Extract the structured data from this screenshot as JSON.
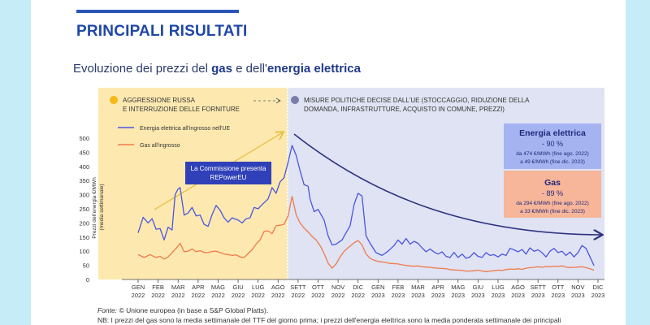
{
  "section_title": "PRINCIPALI RISULTATI",
  "chart_title": {
    "pre": "Evoluzione dei prezzi del ",
    "bold1": "gas",
    "mid": " e dell'",
    "bold2": "energia elettrica"
  },
  "phases": {
    "left_line1": "AGGRESSIONE RUSSA",
    "left_line2": "E INTERRUZIONE DELLE FORNITURE",
    "right_line1": "MISURE POLITICHE DECISE DALL'UE (STOCCAGGIO, RIDUZIONE DELLA",
    "right_line2": "DOMANDA, INFRASTRUTTURE, ACQUISTO IN COMUNE, PREZZI)",
    "left_color": "#fde9b0",
    "right_color": "#dfe3f3",
    "left_dot_color": "#f5b818",
    "right_dot_color": "#7b7fa8"
  },
  "annotation": {
    "line1": "La Commissione presenta",
    "line2": "REPowerEU"
  },
  "box_elec": {
    "title": "Energia elettrica",
    "pct": "- 90 %",
    "line1": "da 474 €/MWh (fine ago. 2022)",
    "line2": "a 49 €/MWh (fine dic. 2023)",
    "color": "#a6b3f1"
  },
  "box_gas": {
    "title": "Gas",
    "pct": "- 89 %",
    "line1": "da 294 €/MWh (fine ago. 2022)",
    "line2": "a 33 €/MWh (fine dic. 2023)",
    "color": "#f7b59a"
  },
  "footer": {
    "source_label": "Fonte:",
    "source_text": " © Unione europea (in base a S&P Global Platts).",
    "note": "NB: I prezzi del gas sono la media settimanale del TTF del giorno prima; i prezzi dell'energia elettrica sono la media ponderata settimanale dei principali"
  },
  "chart_data": {
    "type": "line",
    "title": "Evoluzione dei prezzi del gas e dell'energia elettrica",
    "ylabel": "Prezzi dell'energia €/MWh (media settimanale)",
    "ylim": [
      0,
      500
    ],
    "yticks": [
      0,
      50,
      100,
      150,
      200,
      250,
      300,
      350,
      400,
      450,
      500
    ],
    "xlim": [
      0,
      24
    ],
    "x_ticks": [
      {
        "m": "GEN",
        "y": "2022"
      },
      {
        "m": "FEB",
        "y": "2022"
      },
      {
        "m": "MAR",
        "y": "2022"
      },
      {
        "m": "APR",
        "y": "2022"
      },
      {
        "m": "MAG",
        "y": "2022"
      },
      {
        "m": "GIU",
        "y": "2022"
      },
      {
        "m": "LUG",
        "y": "2022"
      },
      {
        "m": "AGO",
        "y": "2022"
      },
      {
        "m": "SETT",
        "y": "2022"
      },
      {
        "m": "OTT",
        "y": "2022"
      },
      {
        "m": "NOV",
        "y": "2022"
      },
      {
        "m": "DIC",
        "y": "2022"
      },
      {
        "m": "GEN",
        "y": "2023"
      },
      {
        "m": "FEB",
        "y": "2023"
      },
      {
        "m": "MAR",
        "y": "2023"
      },
      {
        "m": "APR",
        "y": "2023"
      },
      {
        "m": "MAG",
        "y": "2023"
      },
      {
        "m": "GIU",
        "y": "2023"
      },
      {
        "m": "LUG",
        "y": "2023"
      },
      {
        "m": "AGO",
        "y": "2023"
      },
      {
        "m": "SETT",
        "y": "2023"
      },
      {
        "m": "OTT",
        "y": "2023"
      },
      {
        "m": "NOV",
        "y": "2023"
      },
      {
        "m": "DIC",
        "y": "2023"
      }
    ],
    "legend": "top-left",
    "series": [
      {
        "name": "Energia elettrica all'ingrosso nell'UE",
        "color": "#4a55e0",
        "points": [
          [
            0,
            165
          ],
          [
            0.25,
            220
          ],
          [
            0.5,
            200
          ],
          [
            0.7,
            215
          ],
          [
            0.9,
            178
          ],
          [
            1.1,
            180
          ],
          [
            1.3,
            140
          ],
          [
            1.5,
            185
          ],
          [
            1.7,
            175
          ],
          [
            1.85,
            300
          ],
          [
            2.0,
            320
          ],
          [
            2.1,
            325
          ],
          [
            2.3,
            228
          ],
          [
            2.5,
            235
          ],
          [
            2.7,
            255
          ],
          [
            2.9,
            225
          ],
          [
            3.1,
            228
          ],
          [
            3.3,
            195
          ],
          [
            3.5,
            188
          ],
          [
            3.7,
            230
          ],
          [
            3.9,
            262
          ],
          [
            4.1,
            245
          ],
          [
            4.3,
            218
          ],
          [
            4.5,
            203
          ],
          [
            4.7,
            218
          ],
          [
            5.0,
            210
          ],
          [
            5.2,
            200
          ],
          [
            5.4,
            215
          ],
          [
            5.6,
            218
          ],
          [
            5.8,
            255
          ],
          [
            6.0,
            250
          ],
          [
            6.2,
            265
          ],
          [
            6.5,
            285
          ],
          [
            6.7,
            325
          ],
          [
            6.9,
            305
          ],
          [
            7.1,
            345
          ],
          [
            7.3,
            360
          ],
          [
            7.5,
            415
          ],
          [
            7.7,
            474
          ],
          [
            7.9,
            440
          ],
          [
            8.1,
            385
          ],
          [
            8.3,
            335
          ],
          [
            8.5,
            330
          ],
          [
            8.6,
            285
          ],
          [
            8.8,
            240
          ],
          [
            9.0,
            248
          ],
          [
            9.3,
            210
          ],
          [
            9.5,
            155
          ],
          [
            9.7,
            122
          ],
          [
            9.9,
            125
          ],
          [
            10.2,
            140
          ],
          [
            10.4,
            165
          ],
          [
            10.6,
            190
          ],
          [
            10.8,
            265
          ],
          [
            11.0,
            305
          ],
          [
            11.2,
            295
          ],
          [
            11.4,
            155
          ],
          [
            11.6,
            128
          ],
          [
            11.9,
            95
          ],
          [
            12.2,
            85
          ],
          [
            12.5,
            100
          ],
          [
            12.8,
            120
          ],
          [
            13.0,
            140
          ],
          [
            13.2,
            125
          ],
          [
            13.4,
            145
          ],
          [
            13.6,
            125
          ],
          [
            13.8,
            135
          ],
          [
            14.0,
            128
          ],
          [
            14.2,
            112
          ],
          [
            14.4,
            98
          ],
          [
            14.6,
            108
          ],
          [
            14.8,
            97
          ],
          [
            15.0,
            90
          ],
          [
            15.2,
            98
          ],
          [
            15.4,
            82
          ],
          [
            15.6,
            78
          ],
          [
            15.8,
            96
          ],
          [
            16.0,
            78
          ],
          [
            16.2,
            90
          ],
          [
            16.4,
            75
          ],
          [
            16.6,
            80
          ],
          [
            16.8,
            95
          ],
          [
            17.0,
            82
          ],
          [
            17.2,
            78
          ],
          [
            17.4,
            95
          ],
          [
            17.6,
            85
          ],
          [
            17.8,
            88
          ],
          [
            18.0,
            80
          ],
          [
            18.2,
            90
          ],
          [
            18.4,
            85
          ],
          [
            18.6,
            110
          ],
          [
            18.8,
            105
          ],
          [
            19.0,
            98
          ],
          [
            19.2,
            106
          ],
          [
            19.4,
            90
          ],
          [
            19.6,
            112
          ],
          [
            19.8,
            100
          ],
          [
            20.0,
            105
          ],
          [
            20.2,
            95
          ],
          [
            20.4,
            80
          ],
          [
            20.6,
            100
          ],
          [
            20.8,
            110
          ],
          [
            21.0,
            95
          ],
          [
            21.2,
            100
          ],
          [
            21.4,
            85
          ],
          [
            21.6,
            97
          ],
          [
            21.8,
            80
          ],
          [
            22.0,
            95
          ],
          [
            22.2,
            120
          ],
          [
            22.4,
            110
          ],
          [
            22.6,
            80
          ],
          [
            22.8,
            49
          ]
        ]
      },
      {
        "name": "Gas all'ingrosso",
        "color": "#f07a4a",
        "points": [
          [
            0,
            88
          ],
          [
            0.3,
            78
          ],
          [
            0.6,
            88
          ],
          [
            0.9,
            78
          ],
          [
            1.1,
            82
          ],
          [
            1.3,
            72
          ],
          [
            1.5,
            80
          ],
          [
            1.7,
            95
          ],
          [
            1.9,
            110
          ],
          [
            2.1,
            128
          ],
          [
            2.3,
            98
          ],
          [
            2.5,
            100
          ],
          [
            2.7,
            108
          ],
          [
            2.9,
            98
          ],
          [
            3.1,
            102
          ],
          [
            3.3,
            96
          ],
          [
            3.5,
            95
          ],
          [
            3.7,
            99
          ],
          [
            3.9,
            100
          ],
          [
            4.1,
            95
          ],
          [
            4.3,
            90
          ],
          [
            4.5,
            88
          ],
          [
            4.7,
            85
          ],
          [
            4.9,
            87
          ],
          [
            5.1,
            80
          ],
          [
            5.3,
            78
          ],
          [
            5.5,
            92
          ],
          [
            5.7,
            105
          ],
          [
            5.9,
            125
          ],
          [
            6.1,
            140
          ],
          [
            6.3,
            170
          ],
          [
            6.5,
            172
          ],
          [
            6.7,
            162
          ],
          [
            6.9,
            190
          ],
          [
            7.1,
            192
          ],
          [
            7.3,
            195
          ],
          [
            7.5,
            225
          ],
          [
            7.7,
            294
          ],
          [
            7.9,
            230
          ],
          [
            8.1,
            200
          ],
          [
            8.3,
            182
          ],
          [
            8.5,
            168
          ],
          [
            8.7,
            152
          ],
          [
            8.9,
            140
          ],
          [
            9.1,
            120
          ],
          [
            9.3,
            92
          ],
          [
            9.5,
            58
          ],
          [
            9.7,
            40
          ],
          [
            9.9,
            55
          ],
          [
            10.1,
            80
          ],
          [
            10.3,
            100
          ],
          [
            10.6,
            118
          ],
          [
            10.8,
            130
          ],
          [
            11.0,
            138
          ],
          [
            11.2,
            122
          ],
          [
            11.4,
            90
          ],
          [
            11.6,
            75
          ],
          [
            11.8,
            68
          ],
          [
            12.0,
            64
          ],
          [
            12.2,
            62
          ],
          [
            12.4,
            60
          ],
          [
            12.6,
            57
          ],
          [
            12.8,
            56
          ],
          [
            13.0,
            55
          ],
          [
            13.2,
            52
          ],
          [
            13.4,
            50
          ],
          [
            13.6,
            48
          ],
          [
            13.8,
            47
          ],
          [
            14.0,
            48
          ],
          [
            14.2,
            45
          ],
          [
            14.4,
            44
          ],
          [
            14.6,
            43
          ],
          [
            14.8,
            41
          ],
          [
            15.0,
            40
          ],
          [
            15.2,
            39
          ],
          [
            15.4,
            38
          ],
          [
            15.6,
            35
          ],
          [
            15.8,
            34
          ],
          [
            16.0,
            33
          ],
          [
            16.2,
            32
          ],
          [
            16.4,
            30
          ],
          [
            16.6,
            30
          ],
          [
            16.8,
            31
          ],
          [
            17.0,
            33
          ],
          [
            17.2,
            30
          ],
          [
            17.4,
            28
          ],
          [
            17.6,
            30
          ],
          [
            17.8,
            31
          ],
          [
            18.0,
            33
          ],
          [
            18.2,
            32
          ],
          [
            18.4,
            35
          ],
          [
            18.6,
            37
          ],
          [
            18.8,
            36
          ],
          [
            19.0,
            38
          ],
          [
            19.2,
            36
          ],
          [
            19.4,
            40
          ],
          [
            19.6,
            42
          ],
          [
            19.8,
            43
          ],
          [
            20.0,
            45
          ],
          [
            20.2,
            43
          ],
          [
            20.4,
            46
          ],
          [
            20.6,
            45
          ],
          [
            20.8,
            47
          ],
          [
            21.0,
            46
          ],
          [
            21.2,
            48
          ],
          [
            21.4,
            44
          ],
          [
            21.6,
            42
          ],
          [
            21.8,
            43
          ],
          [
            22.0,
            44
          ],
          [
            22.2,
            45
          ],
          [
            22.4,
            42
          ],
          [
            22.6,
            38
          ],
          [
            22.8,
            33
          ]
        ]
      }
    ]
  }
}
